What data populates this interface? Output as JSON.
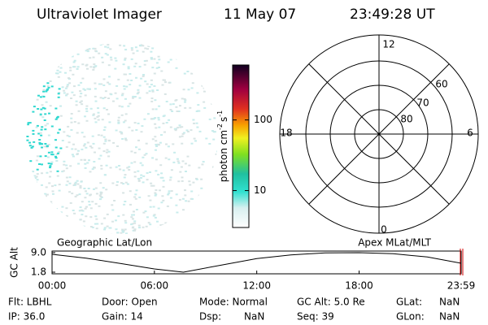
{
  "header": {
    "instrument": "Ultraviolet Imager",
    "date": "11 May 07",
    "time": "23:49:28 UT"
  },
  "colorbar": {
    "label": "photon cm",
    "exp1": "-2",
    "unit2": "s",
    "exp2": "-1",
    "lim": [
      3,
      600
    ],
    "log": true,
    "ticks": [
      10,
      100
    ]
  },
  "polar": {
    "mlt_labels": [
      "12",
      "18",
      "6",
      "0"
    ],
    "lat_labels": [
      "60",
      "70",
      "80"
    ]
  },
  "chart_data": {
    "type": "line",
    "left_label": "Geographic Lat/Lon",
    "right_label": "Apex MLat/MLT",
    "ylabel": "GC Alt",
    "x": [
      0,
      2,
      4,
      6,
      7.7,
      10,
      12,
      14,
      16,
      18,
      20,
      22,
      23.983
    ],
    "values": [
      8.4,
      7.0,
      5.0,
      3.0,
      1.8,
      4.5,
      6.8,
      8.2,
      8.9,
      9.0,
      8.6,
      7.4,
      5.1
    ],
    "color": "#000000",
    "xlim": [
      0,
      23.983
    ],
    "xticks": [
      {
        "value": 0,
        "label": "00:00"
      },
      {
        "value": 6,
        "label": "06:00"
      },
      {
        "value": 12,
        "label": "12:00"
      },
      {
        "value": 18,
        "label": "18:00"
      },
      {
        "value": 23.983,
        "label": "23:59"
      }
    ],
    "ylim": [
      1.8,
      9.0
    ],
    "yticks": [
      {
        "value": 9.0,
        "label": "9.0"
      },
      1.8
    ]
  },
  "info": {
    "rows": [
      [
        "Flt: LBHL",
        "Door: Open",
        "Mode: Normal",
        "GC Alt: 5.0 Re",
        "GLat:",
        "NaN"
      ],
      [
        "IP: 36.0",
        "Gain: 14",
        "Dsp:",
        "NaN",
        "Seq: 39",
        "GLon:",
        "NaN"
      ]
    ]
  }
}
